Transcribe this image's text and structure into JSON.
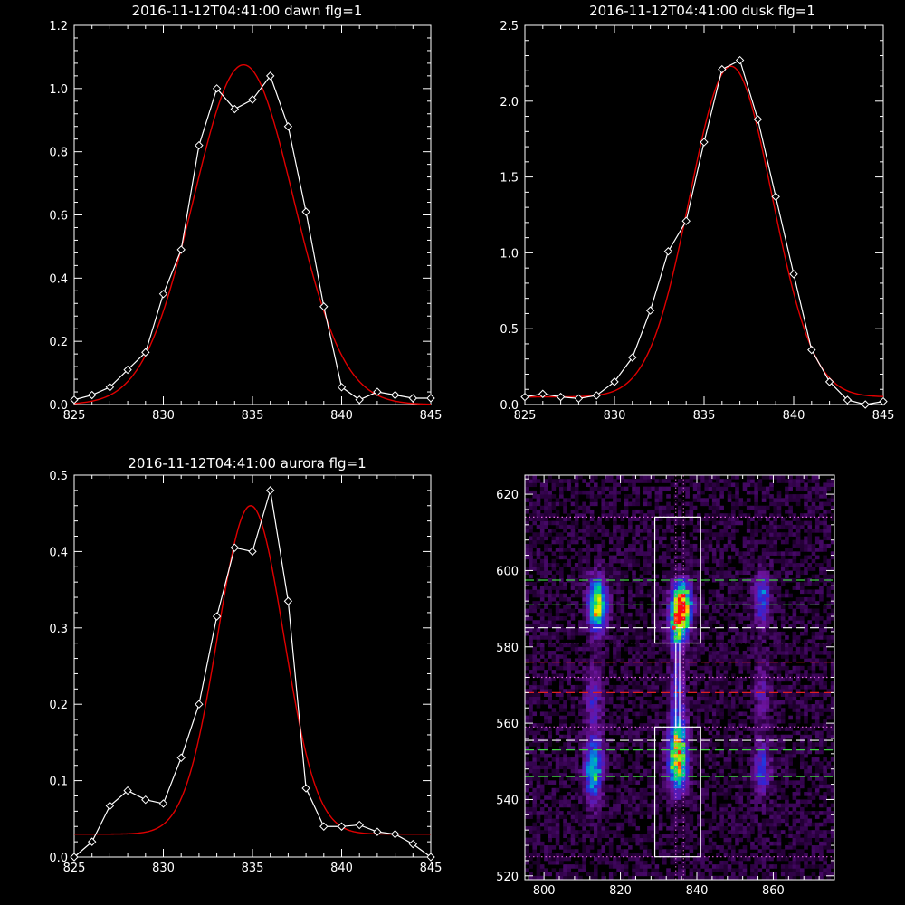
{
  "colors": {
    "background": "#000000",
    "axes": "#ffffff",
    "data": "#ffffff",
    "fit": "#e00000"
  },
  "chart_data": [
    {
      "type": "line",
      "title": "2016-11-12T04:41:00 dawn flg=1",
      "xlim": [
        825,
        845
      ],
      "ylim": [
        0,
        1.2
      ],
      "xticks": [
        825,
        830,
        835,
        840,
        845
      ],
      "yticks": [
        0.0,
        0.2,
        0.4,
        0.6,
        0.8,
        1.0,
        1.2
      ],
      "ytick_labels": [
        "0.0",
        "0.2",
        "0.4",
        "0.6",
        "0.8",
        "1.0",
        "1.2"
      ],
      "series": [
        {
          "marker": "diamond",
          "x": [
            825,
            826,
            827,
            828,
            829,
            830,
            831,
            832,
            833,
            834,
            835,
            836,
            837,
            838,
            839,
            840,
            841,
            842,
            843,
            844,
            845
          ],
          "y": [
            0.015,
            0.03,
            0.055,
            0.11,
            0.165,
            0.35,
            0.49,
            0.82,
            1.0,
            0.935,
            0.965,
            1.04,
            0.88,
            0.61,
            0.31,
            0.055,
            0.015,
            0.04,
            0.03,
            0.02,
            0.02
          ]
        },
        {
          "x": [
            825,
            845
          ],
          "fit": {
            "amplitude": 1.075,
            "center": 834.5,
            "sigma": 2.8,
            "baseline": 0.0
          }
        }
      ]
    },
    {
      "type": "line",
      "title": "2016-11-12T04:41:00 dusk flg=1",
      "xlim": [
        825,
        845
      ],
      "ylim": [
        0,
        2.5
      ],
      "xticks": [
        825,
        830,
        835,
        840,
        845
      ],
      "yticks": [
        0.0,
        0.5,
        1.0,
        1.5,
        2.0,
        2.5
      ],
      "ytick_labels": [
        "0.0",
        "0.5",
        "1.0",
        "1.5",
        "2.0",
        "2.5"
      ],
      "series": [
        {
          "marker": "diamond",
          "x": [
            825,
            826,
            827,
            828,
            829,
            830,
            831,
            832,
            833,
            834,
            835,
            836,
            837,
            838,
            839,
            840,
            841,
            842,
            843,
            844,
            845
          ],
          "y": [
            0.05,
            0.07,
            0.05,
            0.04,
            0.06,
            0.15,
            0.31,
            0.62,
            1.01,
            1.21,
            1.73,
            2.21,
            2.27,
            1.88,
            1.37,
            0.86,
            0.36,
            0.15,
            0.03,
            0.0,
            0.02
          ]
        },
        {
          "x": [
            825,
            845
          ],
          "fit": {
            "amplitude": 2.18,
            "center": 836.5,
            "sigma": 2.3,
            "baseline": 0.05
          }
        }
      ]
    },
    {
      "type": "line",
      "title": "2016-11-12T04:41:00 aurora flg=1",
      "xlim": [
        825,
        845
      ],
      "ylim": [
        0,
        0.5
      ],
      "xticks": [
        825,
        830,
        835,
        840,
        845
      ],
      "yticks": [
        0.0,
        0.1,
        0.2,
        0.3,
        0.4,
        0.5
      ],
      "ytick_labels": [
        "0.0",
        "0.1",
        "0.2",
        "0.3",
        "0.4",
        "0.5"
      ],
      "series": [
        {
          "marker": "diamond",
          "x": [
            825,
            826,
            827,
            828,
            829,
            830,
            831,
            832,
            833,
            834,
            835,
            836,
            837,
            838,
            839,
            840,
            841,
            842,
            843,
            844,
            845
          ],
          "y": [
            0.0,
            0.02,
            0.067,
            0.087,
            0.075,
            0.07,
            0.13,
            0.2,
            0.315,
            0.405,
            0.4,
            0.48,
            0.335,
            0.09,
            0.04,
            0.04,
            0.042,
            0.033,
            0.03,
            0.017,
            0.0
          ]
        },
        {
          "x": [
            825,
            845
          ],
          "fit": {
            "amplitude": 0.43,
            "center": 834.9,
            "sigma": 1.85,
            "baseline": 0.03
          }
        }
      ]
    },
    {
      "type": "heatmap",
      "xlim": [
        795,
        876
      ],
      "ylim": [
        519,
        625
      ],
      "xticks": [
        800,
        820,
        840,
        860
      ],
      "yticks": [
        520,
        540,
        560,
        580,
        600,
        620
      ],
      "blobs": [
        {
          "x": 814,
          "y": 591,
          "sx": 1.6,
          "sy": 4.5,
          "amp": 0.82
        },
        {
          "x": 813,
          "y": 548,
          "sx": 1.6,
          "sy": 5.5,
          "amp": 0.55
        },
        {
          "x": 813,
          "y": 566,
          "sx": 1.5,
          "sy": 6.0,
          "amp": 0.22
        },
        {
          "x": 836,
          "y": 591,
          "sx": 1.7,
          "sy": 4.0,
          "amp": 1.0
        },
        {
          "x": 835,
          "y": 585,
          "sx": 1.5,
          "sy": 3.5,
          "amp": 0.55
        },
        {
          "x": 835,
          "y": 549,
          "sx": 1.6,
          "sy": 4.5,
          "amp": 0.78
        },
        {
          "x": 835,
          "y": 557,
          "sx": 1.5,
          "sy": 3.5,
          "amp": 0.45
        },
        {
          "x": 835,
          "y": 568,
          "sx": 1.3,
          "sy": 8.0,
          "amp": 0.28
        },
        {
          "x": 857,
          "y": 593,
          "sx": 1.5,
          "sy": 4.5,
          "amp": 0.35
        },
        {
          "x": 857,
          "y": 548,
          "sx": 1.5,
          "sy": 4.5,
          "amp": 0.3
        },
        {
          "x": 857,
          "y": 568,
          "sx": 1.5,
          "sy": 7.0,
          "amp": 0.15
        }
      ],
      "boxes": [
        {
          "x0": 829,
          "x1": 841,
          "y0": 581,
          "y1": 614
        },
        {
          "x0": 829,
          "x1": 841,
          "y0": 525,
          "y1": 559
        },
        {
          "x0": 834.5,
          "x1": 835.5,
          "y0": 559,
          "y1": 581
        }
      ],
      "hlines": [
        {
          "y": 614,
          "color": "#e060e0",
          "style": "dotted"
        },
        {
          "y": 597.5,
          "color": "#40d040",
          "style": "dashed"
        },
        {
          "y": 591,
          "color": "#40d040",
          "style": "dashed"
        },
        {
          "y": 585,
          "color": "#ffffff",
          "style": "dashed"
        },
        {
          "y": 581,
          "color": "#e060e0",
          "style": "dotted"
        },
        {
          "y": 576,
          "color": "#e02020",
          "style": "dashed"
        },
        {
          "y": 572,
          "color": "#e060e0",
          "style": "dotted"
        },
        {
          "y": 568,
          "color": "#e02020",
          "style": "dashed"
        },
        {
          "y": 559,
          "color": "#e060e0",
          "style": "dotted"
        },
        {
          "y": 555.5,
          "color": "#ffffff",
          "style": "dashed"
        },
        {
          "y": 553,
          "color": "#40d040",
          "style": "dashed"
        },
        {
          "y": 546,
          "color": "#40d040",
          "style": "dashed"
        },
        {
          "y": 525,
          "color": "#e060e0",
          "style": "dotted"
        }
      ],
      "vlines": [
        {
          "x": 834.5,
          "color": "#e060e0",
          "style": "dotted"
        },
        {
          "x": 836.5,
          "color": "#e060e0",
          "style": "dotted"
        }
      ],
      "marker": {
        "x": 834,
        "y": 585,
        "color": "#ff2020"
      }
    }
  ]
}
